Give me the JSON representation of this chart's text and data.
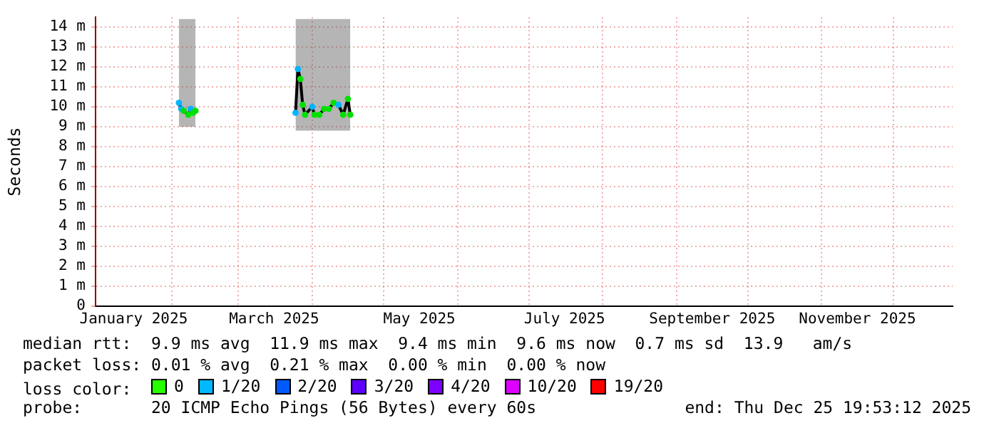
{
  "chart_data": {
    "type": "line",
    "ylabel": "Seconds",
    "legend_title": "loss color:",
    "legend": "bottom",
    "grid": true,
    "marker": "circle",
    "line_style": "solid",
    "xlim": [
      "2024-12-31",
      "2025-12-26"
    ],
    "xticks": [
      {
        "value": "2025-01-16",
        "label": "January 2025"
      },
      {
        "value": "2025-02-01",
        "label": null
      },
      {
        "value": "2025-03-01",
        "label": null
      },
      {
        "value": "2025-03-16",
        "label": "March 2025"
      },
      {
        "value": "2025-04-01",
        "label": null
      },
      {
        "value": "2025-05-01",
        "label": null
      },
      {
        "value": "2025-05-16",
        "label": "May 2025"
      },
      {
        "value": "2025-06-01",
        "label": null
      },
      {
        "value": "2025-07-01",
        "label": null
      },
      {
        "value": "2025-07-16",
        "label": "July 2025"
      },
      {
        "value": "2025-08-01",
        "label": null
      },
      {
        "value": "2025-09-01",
        "label": null
      },
      {
        "value": "2025-09-16",
        "label": "September 2025"
      },
      {
        "value": "2025-10-01",
        "label": null
      },
      {
        "value": "2025-11-01",
        "label": null
      },
      {
        "value": "2025-11-16",
        "label": "November 2025"
      },
      {
        "value": "2025-12-01",
        "label": null
      }
    ],
    "ylim": [
      0,
      14.5
    ],
    "yticks": [
      0,
      {
        "value": 1,
        "label": "1 m"
      },
      {
        "value": 2,
        "label": "2 m"
      },
      {
        "value": 3,
        "label": "3 m"
      },
      {
        "value": 4,
        "label": "4 m"
      },
      {
        "value": 5,
        "label": "5 m"
      },
      {
        "value": 6,
        "label": "6 m"
      },
      {
        "value": 7,
        "label": "7 m"
      },
      {
        "value": 8,
        "label": "8 m"
      },
      {
        "value": 9,
        "label": "9 m"
      },
      {
        "value": 10,
        "label": "10 m"
      },
      {
        "value": 11,
        "label": "11 m"
      },
      {
        "value": 12,
        "label": "12 m"
      },
      {
        "value": 13,
        "label": "13 m"
      },
      {
        "value": 14,
        "label": "14 m"
      }
    ],
    "series": [
      {
        "color": "#000000",
        "x": [
          "2025-02-04",
          "2025-02-05",
          "2025-02-06",
          "2025-02-08",
          "2025-02-09",
          "2025-02-10",
          "2025-02-11",
          "2025-03-01",
          "2025-03-25",
          "2025-03-26",
          "2025-03-27",
          "2025-03-28",
          "2025-03-29",
          "2025-04-01",
          "2025-04-02",
          "2025-04-04",
          "2025-04-06",
          "2025-04-08",
          "2025-04-10",
          "2025-04-12",
          "2025-04-14",
          "2025-04-16",
          "2025-04-17"
        ],
        "values": [
          10.2,
          9.9,
          9.8,
          9.6,
          9.9,
          9.7,
          9.8,
          null,
          9.7,
          11.9,
          11.4,
          10.1,
          9.6,
          10.0,
          9.6,
          9.6,
          9.9,
          9.9,
          10.2,
          10.1,
          9.6,
          10.4,
          9.6
        ],
        "colors": [
          "#00b4ff",
          "#00b4ff",
          "#00e000",
          "#00e000",
          "#00b4ff",
          "#00e000",
          "#00e000",
          null,
          "#00b4ff",
          "#00b4ff",
          "#00e000",
          "#00e000",
          "#00e000",
          "#00b4ff",
          "#00e000",
          "#00e000",
          "#00e000",
          "#00e000",
          "#00e000",
          "#00b4ff",
          "#00e000",
          "#00e000",
          "#00e000"
        ],
        "lower": [
          9.0,
          9.0,
          9.0,
          9.0,
          9.0,
          9.0,
          9.0,
          null,
          8.8,
          8.8,
          8.8,
          8.8,
          8.8,
          8.8,
          8.8,
          8.8,
          8.8,
          8.8,
          8.8,
          8.8,
          8.8,
          8.8,
          8.8
        ],
        "upper": [
          14.4,
          14.4,
          14.4,
          14.4,
          14.4,
          14.4,
          14.4,
          null,
          14.4,
          14.4,
          14.4,
          14.4,
          14.4,
          14.4,
          14.4,
          14.4,
          14.4,
          14.4,
          14.4,
          14.4,
          14.4,
          14.4,
          14.4
        ]
      },
      {
        "name": "0",
        "color": "#26ff00"
      },
      {
        "name": "1/20",
        "color": "#00b8ff"
      },
      {
        "name": "2/20",
        "color": "#0059ff"
      },
      {
        "name": "3/20",
        "color": "#5e00ff"
      },
      {
        "name": "4/20",
        "color": "#7e00ff"
      },
      {
        "name": "10/20",
        "color": "#dd00ff"
      },
      {
        "name": "19/20",
        "color": "#ff0000"
      }
    ],
    "annotations": [
      "median rtt:  9.9 ms avg  11.9 ms max  9.4 ms min  9.6 ms now  0.7 ms sd  13.9   am/s",
      "packet loss: 0.01 % avg  0.21 % max  0.00 % min  0.00 % now",
      "probe:       20 ICMP Echo Pings (56 Bytes) every 60s",
      "end: Thu Dec 25 19:53:12 2025"
    ]
  }
}
